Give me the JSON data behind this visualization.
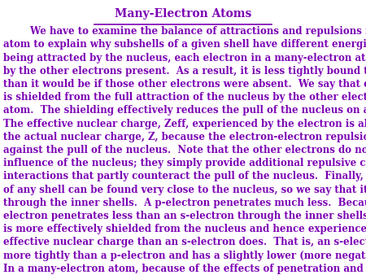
{
  "title": "Many-Electron Atoms",
  "background_color": "#ffffff",
  "text_color": "#7B00B4",
  "title_color": "#7B00B4",
  "font_size": 8.5,
  "title_font_size": 10,
  "full_text": "        We have to examine the balance of attractions and repulsions in the\natom to explain why subshells of a given shell have different energies.  As well as\nbeing attracted by the nucleus, each electron in a many-electron atom is repelled\nby the other electrons present.  As a result, it is less tightly bound to the nucleus\nthan it would be if those other electrons were absent.  We say that each electron\nis shielded from the full attraction of the nucleus by the other electrons in the\natom.  The shielding effectively reduces the pull of the nucleus on an electron.\nThe effective nuclear charge, Zeff, experienced by the electron is always less than\nthe actual nuclear charge, Z, because the electron-electron repulsions work\nagainst the pull of the nucleus.  Note that the other electrons do not “block” the\ninfluence of the nucleus; they simply provide additional repulsive coulombic\ninteractions that partly counteract the pull of the nucleus.  Finally, an s-electron\nof any shell can be found very close to the nucleus, so we say that it can penetrate\nthrough the inner shells.  A p-electron penetrates much less.  Because a p-\nelectron penetrates less than an s-electron through the inner shells of the atom, it\nis more effectively shielded from the nucleus and hence experiences a smaller\neffective nuclear charge than an s-electron does.  That is, an s-electron is bound\nmore tightly than a p-electron and has a slightly lower (more negative) energy.\nIn a many-electron atom, because of the effects of penetration and shielding, the\norder of energies of orbitals in a given shell is typically s < p < d < f."
}
